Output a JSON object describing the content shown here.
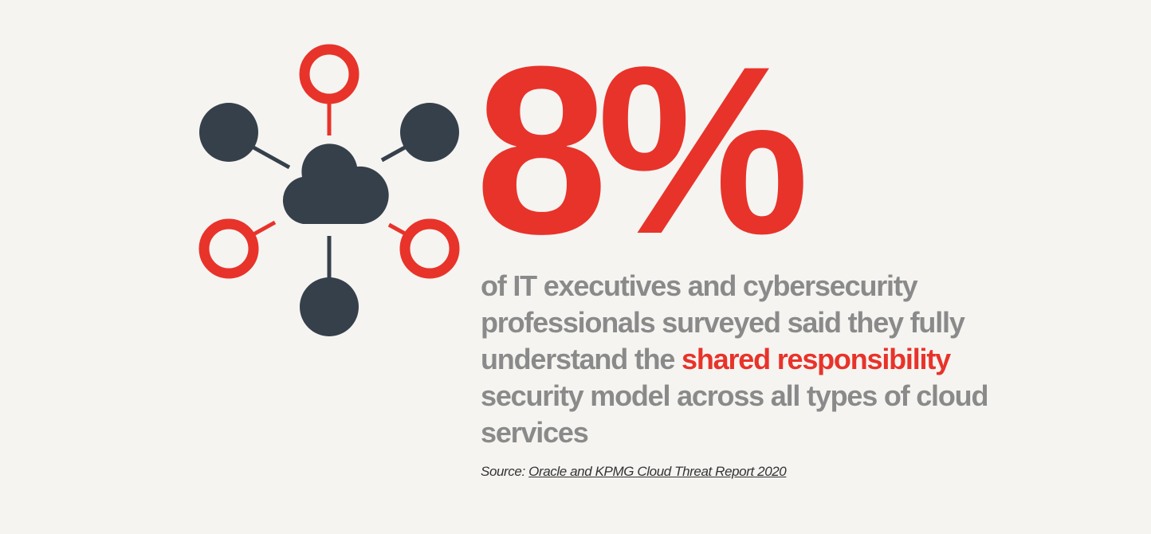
{
  "stat": {
    "value": "8%"
  },
  "description": {
    "part1": "of IT executives and cybersecurity professionals surveyed said they fully understand the ",
    "highlight": "shared responsibility",
    "part2": " security model across all types of cloud services"
  },
  "source": {
    "label": "Source:",
    "link_text": "Oracle and KPMG Cloud Threat Report 2020"
  },
  "colors": {
    "accent": "#e8332a",
    "dark": "#36404b",
    "text": "#8a8a8a",
    "background": "#f5f4f1"
  }
}
